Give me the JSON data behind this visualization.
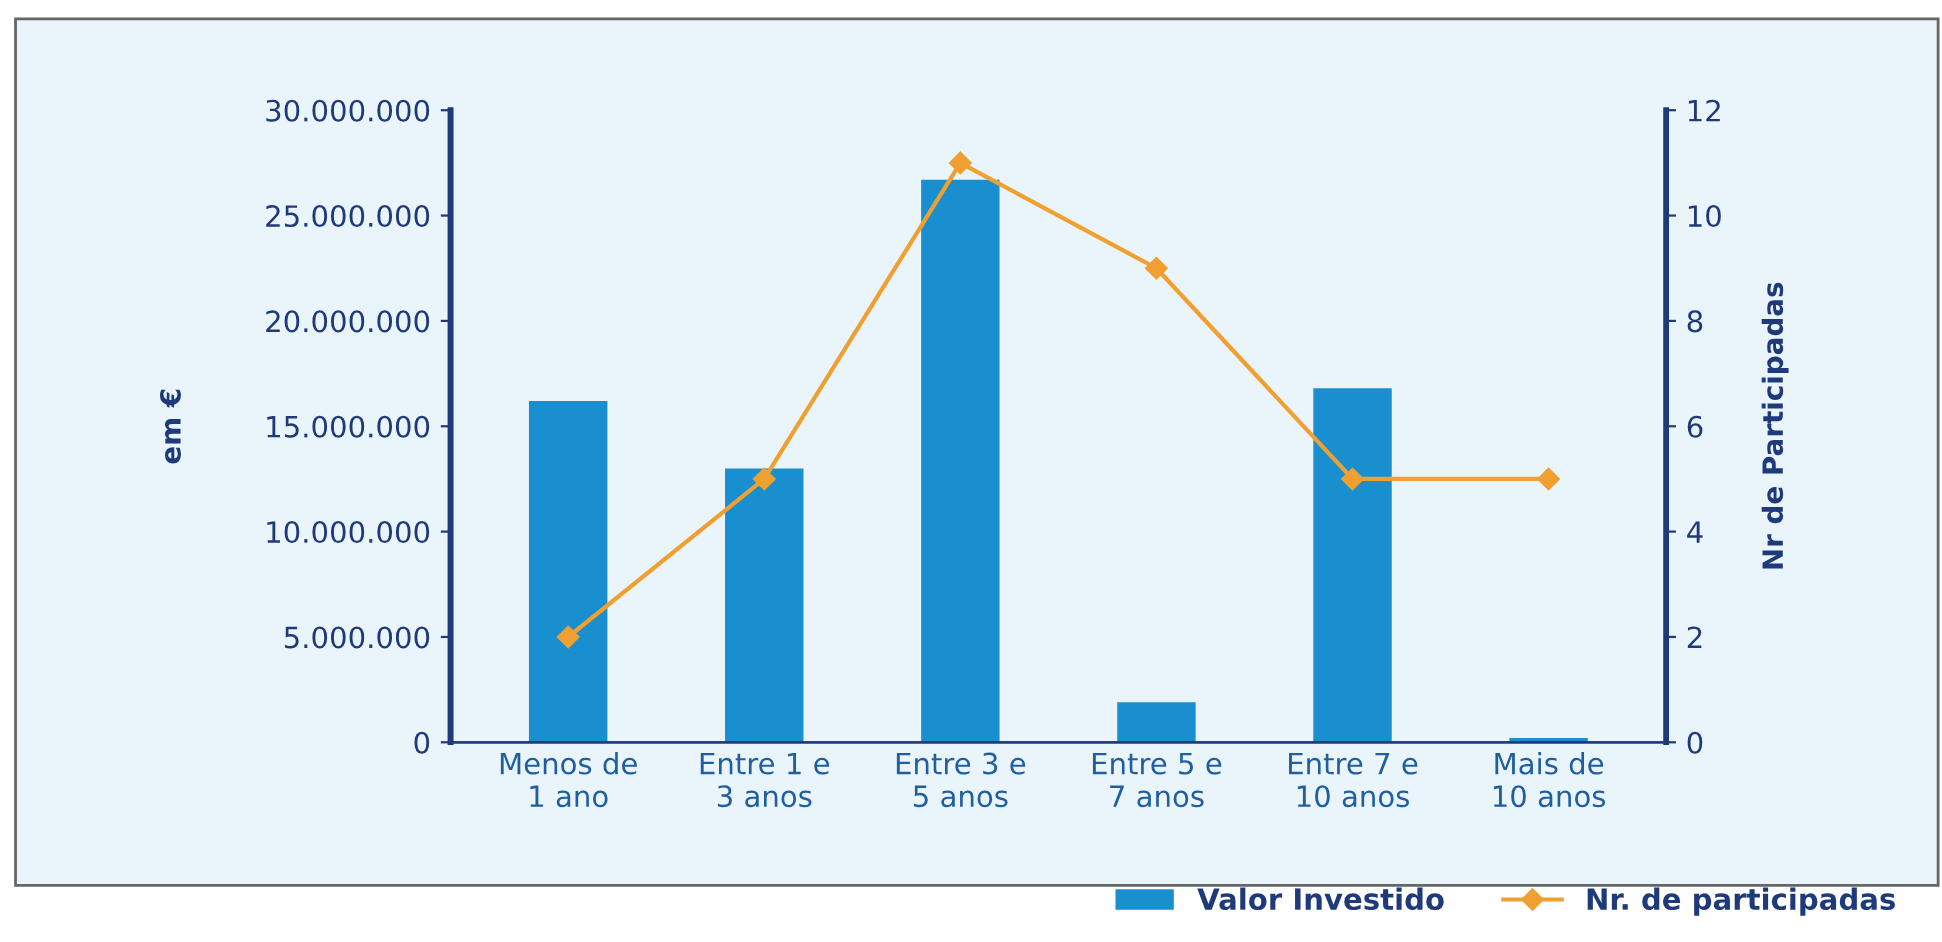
{
  "chart_data": {
    "type": "bar",
    "ylabel": "em €",
    "y2label": "Nr de Participadas",
    "categories": [
      "Menos de\n1 ano",
      "Entre 1 e\n3 anos",
      "Entre 3 e\n5 anos",
      "Entre 5 e\n7 anos",
      "Entre 7 e\n10 anos",
      "Mais de\n10 anos"
    ],
    "series": [
      {
        "name": "Valor Investido",
        "color": "#1a8fd0",
        "values": [
          16200000,
          13000000,
          26700000,
          1900000,
          16800000,
          200000
        ]
      },
      {
        "name": "Nr. de participadas",
        "type": "line",
        "axis": "y2",
        "color": "#f0a030",
        "marker": "diamond",
        "values": [
          2,
          5,
          11,
          9,
          5,
          5
        ]
      }
    ],
    "ylim": [
      0,
      30000000
    ],
    "yticks": [
      {
        "value": 0,
        "label": "0"
      },
      {
        "value": 5000000,
        "label": "5.000.000"
      },
      {
        "value": 10000000,
        "label": "10.000.000"
      },
      {
        "value": 15000000,
        "label": "15.000.000"
      },
      {
        "value": 20000000,
        "label": "20.000.000"
      },
      {
        "value": 25000000,
        "label": "25.000.000"
      },
      {
        "value": 30000000,
        "label": "30.000.000"
      }
    ],
    "y2lim": [
      0,
      12
    ],
    "y2ticks": [
      0,
      2,
      4,
      6,
      8,
      10,
      12
    ],
    "grid": false,
    "legend": "bottom right"
  }
}
